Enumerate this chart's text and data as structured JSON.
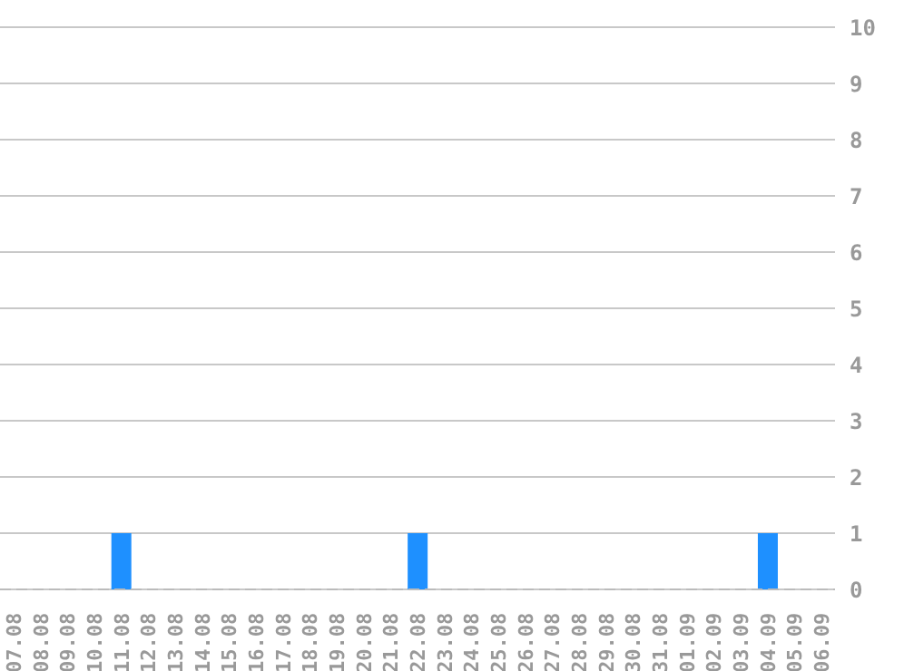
{
  "chart_data": {
    "type": "bar",
    "categories": [
      "07.08",
      "08.08",
      "09.08",
      "10.08",
      "11.08",
      "12.08",
      "13.08",
      "14.08",
      "15.08",
      "16.08",
      "17.08",
      "18.08",
      "19.08",
      "20.08",
      "21.08",
      "22.08",
      "23.08",
      "24.08",
      "25.08",
      "26.08",
      "27.08",
      "28.08",
      "29.08",
      "30.08",
      "31.08",
      "01.09",
      "02.09",
      "03.09",
      "04.09",
      "05.09",
      "06.09"
    ],
    "values": [
      0,
      0,
      0,
      0,
      1,
      0,
      0,
      0,
      0,
      0,
      0,
      0,
      0,
      0,
      0,
      1,
      0,
      0,
      0,
      0,
      0,
      0,
      0,
      0,
      0,
      0,
      0,
      0,
      1,
      0,
      0
    ],
    "color": "#1e90ff",
    "ylim": [
      0,
      10
    ],
    "yticks": [
      0,
      1,
      2,
      3,
      4,
      5,
      6,
      7,
      8,
      9,
      10
    ],
    "grid": "y"
  }
}
